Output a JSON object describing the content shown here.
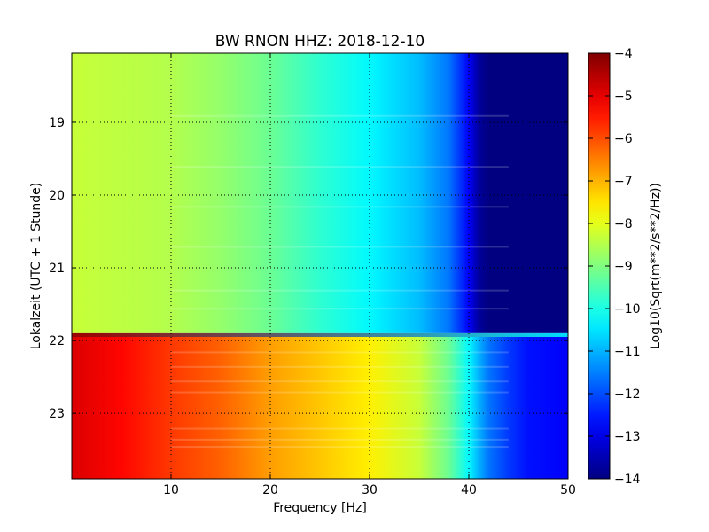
{
  "chart_data": {
    "type": "heatmap",
    "title": "BW RNON HHZ: 2018-12-10",
    "xlabel": "Frequency [Hz]",
    "ylabel": "Lokalzeit (UTC + 1 Stunde)",
    "xlim": [
      0,
      50
    ],
    "ylim": [
      18.05,
      23.9
    ],
    "y_inverted": true,
    "x_ticks": [
      10,
      20,
      30,
      40,
      50
    ],
    "x_tick_labels": [
      "10",
      "20",
      "30",
      "40",
      "50"
    ],
    "y_ticks": [
      19,
      20,
      21,
      22,
      23
    ],
    "y_tick_labels": [
      "19",
      "20",
      "21",
      "22",
      "23"
    ],
    "grid": true,
    "colormap": "jet",
    "colorbar": {
      "label": "Log10(Sqrt(m**2/s**2/Hz))",
      "min": -14,
      "max": -4,
      "ticks": [
        -4,
        -5,
        -6,
        -7,
        -8,
        -9,
        -10,
        -11,
        -12,
        -13,
        -14
      ],
      "tick_labels": [
        "−4",
        "−5",
        "−6",
        "−7",
        "−8",
        "−9",
        "−10",
        "−11",
        "−12",
        "−13",
        "−14"
      ]
    },
    "segments": [
      {
        "time_range": [
          18.05,
          21.9
        ],
        "freq_hz": [
          0,
          5,
          10,
          15,
          20,
          25,
          30,
          35,
          38,
          40,
          41,
          42,
          44,
          46,
          50
        ],
        "value": [
          -8.3,
          -8.4,
          -8.5,
          -8.8,
          -9.2,
          -9.8,
          -10.3,
          -10.9,
          -11.6,
          -12.8,
          -13.7,
          -14,
          -14,
          -14,
          -14
        ]
      },
      {
        "time_range": [
          21.9,
          21.95
        ],
        "freq_hz": [
          0,
          50
        ],
        "value": [
          -4.3,
          -10.6
        ]
      },
      {
        "time_range": [
          21.95,
          23.9
        ],
        "freq_hz": [
          0,
          5,
          10,
          15,
          20,
          25,
          30,
          35,
          38,
          40,
          41,
          42,
          44,
          46,
          50
        ],
        "value": [
          -4.9,
          -5.3,
          -5.8,
          -6.2,
          -6.8,
          -7.2,
          -7.6,
          -8.3,
          -9.2,
          -10.3,
          -11.0,
          -11.6,
          -12.2,
          -12.6,
          -12.8
        ]
      }
    ],
    "bright_bands_hours": [
      18.9,
      19.6,
      20.15,
      20.7,
      21.3,
      21.55,
      22.15,
      22.35,
      22.55,
      22.7,
      23.2,
      23.35,
      23.45
    ]
  }
}
